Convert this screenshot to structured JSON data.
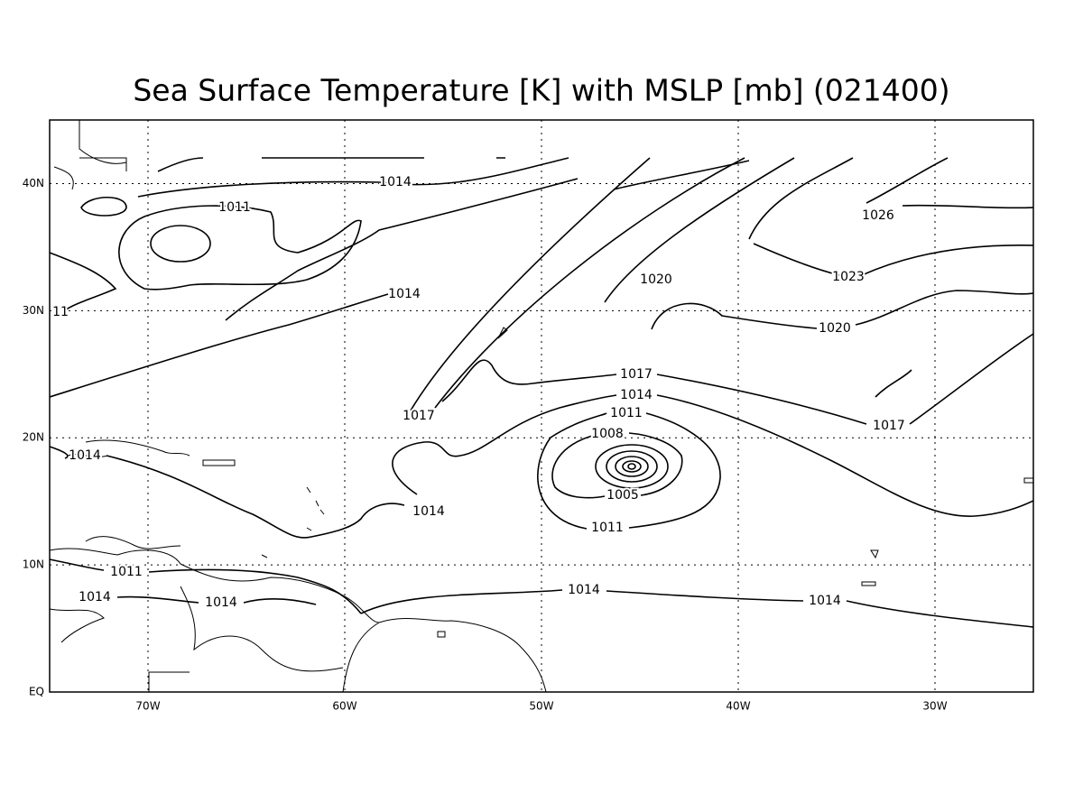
{
  "title": "Sea Surface Temperature [K] with MSLP [mb] (021400)",
  "lon_range": [
    -75,
    -25
  ],
  "lat_range": [
    0,
    45
  ],
  "lon_ticks": [
    {
      "value": -70,
      "label": "70W"
    },
    {
      "value": -60,
      "label": "60W"
    },
    {
      "value": -50,
      "label": "50W"
    },
    {
      "value": -40,
      "label": "40W"
    },
    {
      "value": -30,
      "label": "30W"
    }
  ],
  "lat_ticks": [
    {
      "value": 0,
      "label": "EQ"
    },
    {
      "value": 10,
      "label": "10N"
    },
    {
      "value": 20,
      "label": "20N"
    },
    {
      "value": 30,
      "label": "30N"
    },
    {
      "value": 40,
      "label": "40N"
    }
  ],
  "contour_labels": [
    1014,
    1011,
    1014,
    1020,
    1026,
    1023,
    1020,
    1017,
    1014,
    1017,
    1011,
    1017,
    1008,
    1014,
    1005,
    1014,
    1011,
    1011,
    1014,
    1014,
    1014,
    1014,
    11
  ]
}
